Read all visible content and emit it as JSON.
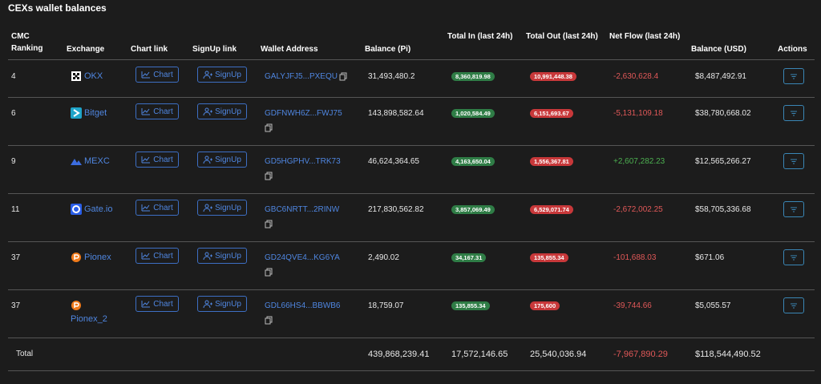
{
  "title": "CEXs wallet balances",
  "table": {
    "headers": [
      "CMC Ranking",
      "Exchange",
      "Chart link",
      "SignUp link",
      "Wallet Address",
      "Balance (Pi)",
      "Total In (last 24h)",
      "Total Out (last 24h)",
      "Net Flow (last 24h)",
      "Balance (USD)",
      "Actions"
    ],
    "button_labels": {
      "chart": "Chart",
      "signup": "SignUp"
    },
    "rows": [
      {
        "rank": "4",
        "exchange": "OKX",
        "wallet": "GALYJFJ5...PXEQU",
        "balance": "31,493,480.2",
        "total_in": "8,360,819.98",
        "total_out": "10,991,448.38",
        "net_flow": "-2,630,628.4",
        "balance_usd": "$8,487,492.91"
      },
      {
        "rank": "6",
        "exchange": "Bitget",
        "wallet": "GDFNWH6Z...FWJ75",
        "balance": "143,898,582.64",
        "total_in": "1,020,584.49",
        "total_out": "6,151,693.67",
        "net_flow": "-5,131,109.18",
        "balance_usd": "$38,780,668.02"
      },
      {
        "rank": "9",
        "exchange": "MEXC",
        "wallet": "GD5HGPHV...TRK73",
        "balance": "46,624,364.65",
        "total_in": "4,163,650.04",
        "total_out": "1,556,367.81",
        "net_flow": "+2,607,282.23",
        "balance_usd": "$12,565,266.27"
      },
      {
        "rank": "11",
        "exchange": "Gate.io",
        "wallet": "GBC6NRTT...2RINW",
        "balance": "217,830,562.82",
        "total_in": "3,857,069.49",
        "total_out": "6,529,071.74",
        "net_flow": "-2,672,002.25",
        "balance_usd": "$58,705,336.68"
      },
      {
        "rank": "37",
        "exchange": "Pionex",
        "wallet": "GD24QVE4...KG6YA",
        "balance": "2,490.02",
        "total_in": "34,167.31",
        "total_out": "135,855.34",
        "net_flow": "-101,688.03",
        "balance_usd": "$671.06"
      },
      {
        "rank": "37",
        "exchange": "Pionex_2",
        "wallet": "GDL66HS4...BBWB6",
        "balance": "18,759.07",
        "total_in": "135,855.34",
        "total_out": "175,600",
        "net_flow": "-39,744.66",
        "balance_usd": "$5,055.57"
      }
    ],
    "total": {
      "label": "Total",
      "balance": "439,868,239.41",
      "total_in": "17,572,146.65",
      "total_out": "25,540,036.94",
      "net_flow": "-7,967,890.29",
      "balance_usd": "$118,544,490.52"
    }
  }
}
